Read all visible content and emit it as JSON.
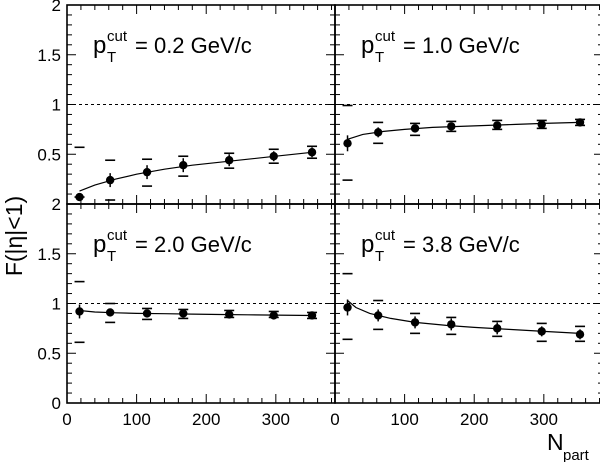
{
  "chart_data": {
    "type": "scatter",
    "x_label_main": "N",
    "x_label_sub": "part",
    "y_label": "F(|η|<1)",
    "xlim": [
      0,
      385
    ],
    "ylim": [
      0,
      2
    ],
    "x_ticks": [
      0,
      100,
      200,
      300
    ],
    "y_ticks_top": [
      "2",
      "1.5",
      "1",
      "0.5"
    ],
    "y_ticks_bottom": [
      "2",
      "1.5",
      "1",
      "0.5",
      "0"
    ],
    "reference_line": 1,
    "panels": [
      {
        "label_main": "p",
        "label_sup": "cut",
        "label_sub": "T",
        "label_value": " = 0.2 GeV/c",
        "points": [
          {
            "x": 18,
            "y": 0.07,
            "err": 0.04,
            "sys_lo": 0.07,
            "sys_hi": 0.57
          },
          {
            "x": 62,
            "y": 0.24,
            "err": 0.07,
            "sys_lo": 0.04,
            "sys_hi": 0.44
          },
          {
            "x": 115,
            "y": 0.32,
            "err": 0.07,
            "sys_lo": 0.18,
            "sys_hi": 0.45
          },
          {
            "x": 167,
            "y": 0.39,
            "err": 0.07,
            "sys_lo": 0.28,
            "sys_hi": 0.48
          },
          {
            "x": 233,
            "y": 0.44,
            "err": 0.06,
            "sys_lo": 0.36,
            "sys_hi": 0.51
          },
          {
            "x": 297,
            "y": 0.48,
            "err": 0.05,
            "sys_lo": 0.41,
            "sys_hi": 0.55
          },
          {
            "x": 352,
            "y": 0.52,
            "err": 0.05,
            "sys_lo": 0.46,
            "sys_hi": 0.58
          }
        ],
        "fit": [
          [
            18,
            0.13
          ],
          [
            40,
            0.19
          ],
          [
            70,
            0.25
          ],
          [
            100,
            0.3
          ],
          [
            140,
            0.35
          ],
          [
            180,
            0.39
          ],
          [
            220,
            0.42
          ],
          [
            260,
            0.45
          ],
          [
            300,
            0.48
          ],
          [
            352,
            0.52
          ]
        ]
      },
      {
        "label_main": "p",
        "label_sup": "cut",
        "label_sub": "T",
        "label_value": " = 1.0 GeV/c",
        "points": [
          {
            "x": 18,
            "y": 0.61,
            "err": 0.08,
            "sys_lo": 0.24,
            "sys_hi": 0.99
          },
          {
            "x": 62,
            "y": 0.72,
            "err": 0.05,
            "sys_lo": 0.61,
            "sys_hi": 0.82
          },
          {
            "x": 115,
            "y": 0.76,
            "err": 0.04,
            "sys_lo": 0.69,
            "sys_hi": 0.81
          },
          {
            "x": 167,
            "y": 0.78,
            "err": 0.04,
            "sys_lo": 0.73,
            "sys_hi": 0.83
          },
          {
            "x": 233,
            "y": 0.79,
            "err": 0.04,
            "sys_lo": 0.75,
            "sys_hi": 0.84
          },
          {
            "x": 297,
            "y": 0.8,
            "err": 0.03,
            "sys_lo": 0.76,
            "sys_hi": 0.84
          },
          {
            "x": 352,
            "y": 0.82,
            "err": 0.03,
            "sys_lo": 0.79,
            "sys_hi": 0.85
          }
        ],
        "fit": [
          [
            18,
            0.65
          ],
          [
            40,
            0.7
          ],
          [
            70,
            0.73
          ],
          [
            100,
            0.75
          ],
          [
            140,
            0.77
          ],
          [
            180,
            0.78
          ],
          [
            220,
            0.79
          ],
          [
            260,
            0.8
          ],
          [
            300,
            0.81
          ],
          [
            352,
            0.82
          ]
        ]
      },
      {
        "label_main": "p",
        "label_sup": "cut",
        "label_sub": "T",
        "label_value": " = 2.0 GeV/c",
        "points": [
          {
            "x": 18,
            "y": 0.92,
            "err": 0.07,
            "sys_lo": 0.61,
            "sys_hi": 1.22
          },
          {
            "x": 62,
            "y": 0.91,
            "err": 0.04,
            "sys_lo": 0.81,
            "sys_hi": 1.0
          },
          {
            "x": 115,
            "y": 0.9,
            "err": 0.04,
            "sys_lo": 0.84,
            "sys_hi": 0.95
          },
          {
            "x": 167,
            "y": 0.9,
            "err": 0.04,
            "sys_lo": 0.85,
            "sys_hi": 0.94
          },
          {
            "x": 233,
            "y": 0.89,
            "err": 0.03,
            "sys_lo": 0.86,
            "sys_hi": 0.93
          },
          {
            "x": 297,
            "y": 0.88,
            "err": 0.03,
            "sys_lo": 0.86,
            "sys_hi": 0.92
          },
          {
            "x": 352,
            "y": 0.88,
            "err": 0.03,
            "sys_lo": 0.85,
            "sys_hi": 0.91
          }
        ],
        "fit": [
          [
            18,
            0.93
          ],
          [
            40,
            0.915
          ],
          [
            70,
            0.907
          ],
          [
            100,
            0.9
          ],
          [
            140,
            0.897
          ],
          [
            180,
            0.893
          ],
          [
            220,
            0.889
          ],
          [
            260,
            0.886
          ],
          [
            300,
            0.883
          ],
          [
            352,
            0.879
          ]
        ]
      },
      {
        "label_main": "p",
        "label_sup": "cut",
        "label_sub": "T",
        "label_value": " = 3.8 GeV/c",
        "points": [
          {
            "x": 18,
            "y": 0.96,
            "err": 0.08,
            "sys_lo": 0.64,
            "sys_hi": 1.3
          },
          {
            "x": 62,
            "y": 0.88,
            "err": 0.06,
            "sys_lo": 0.74,
            "sys_hi": 1.03
          },
          {
            "x": 115,
            "y": 0.81,
            "err": 0.06,
            "sys_lo": 0.7,
            "sys_hi": 0.9
          },
          {
            "x": 167,
            "y": 0.79,
            "err": 0.06,
            "sys_lo": 0.69,
            "sys_hi": 0.86
          },
          {
            "x": 233,
            "y": 0.75,
            "err": 0.06,
            "sys_lo": 0.67,
            "sys_hi": 0.82
          },
          {
            "x": 297,
            "y": 0.72,
            "err": 0.05,
            "sys_lo": 0.62,
            "sys_hi": 0.8
          },
          {
            "x": 352,
            "y": 0.69,
            "err": 0.05,
            "sys_lo": 0.62,
            "sys_hi": 0.77
          }
        ],
        "fit": [
          [
            18,
            1.03
          ],
          [
            30,
            0.96
          ],
          [
            50,
            0.9
          ],
          [
            80,
            0.85
          ],
          [
            115,
            0.81
          ],
          [
            160,
            0.78
          ],
          [
            200,
            0.76
          ],
          [
            250,
            0.74
          ],
          [
            300,
            0.72
          ],
          [
            352,
            0.7
          ]
        ]
      }
    ],
    "grid": false,
    "legend": "none"
  }
}
